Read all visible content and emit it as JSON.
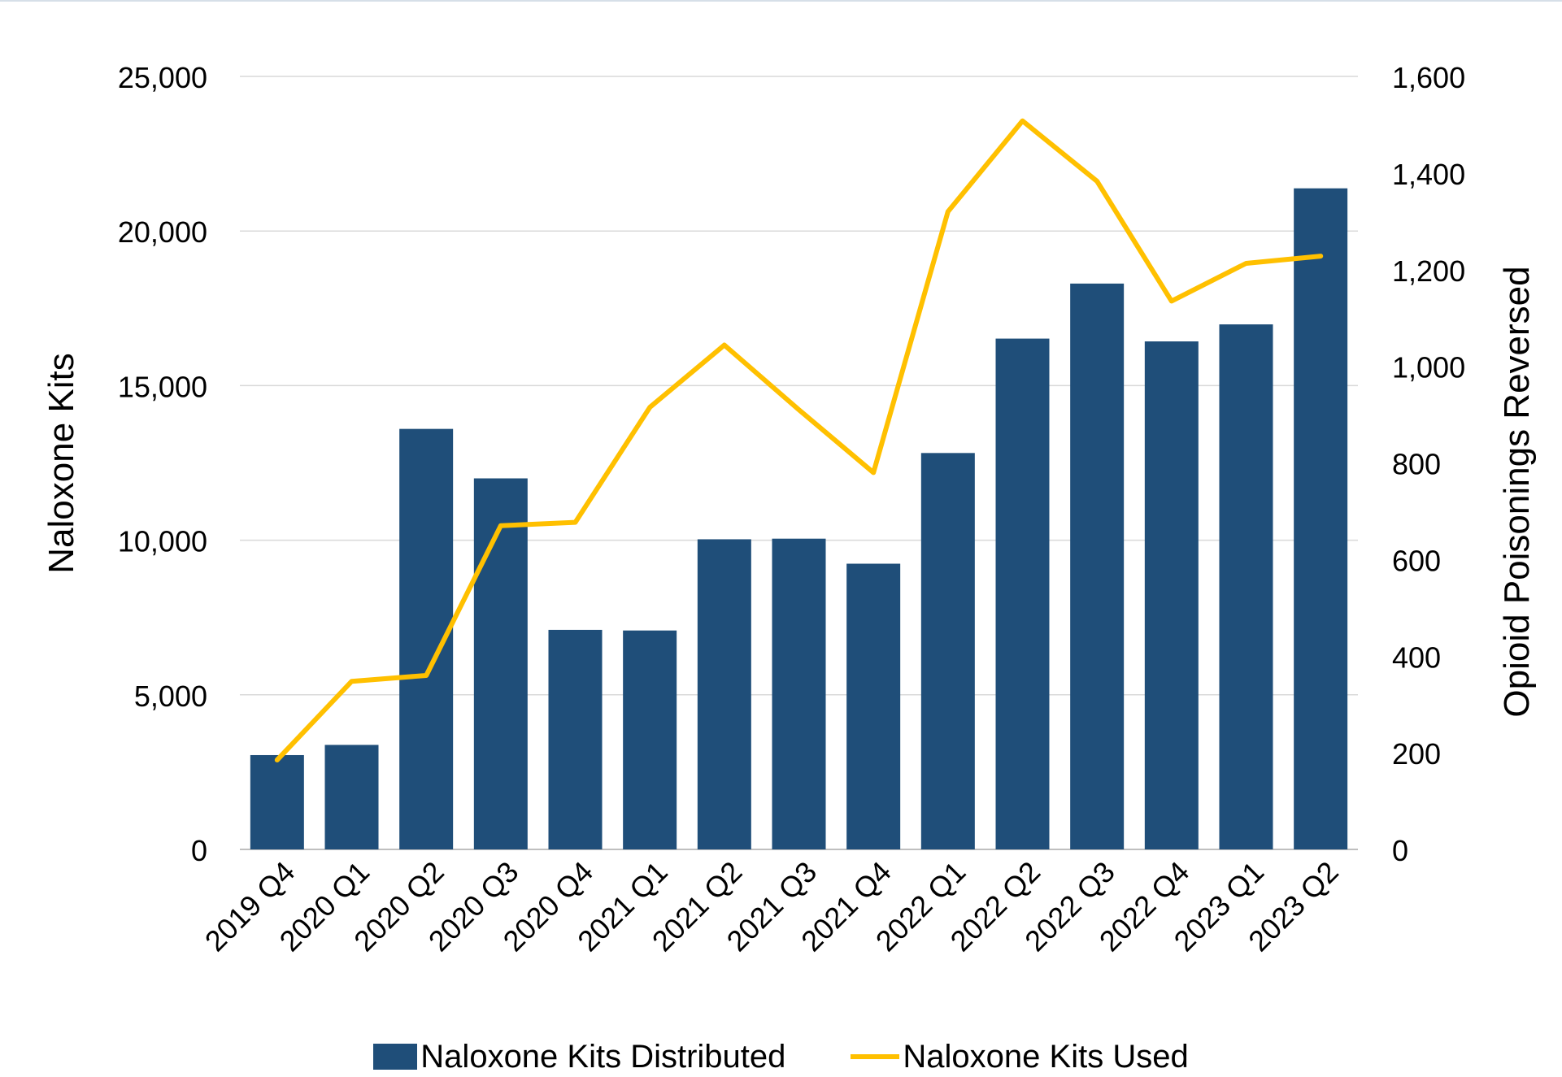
{
  "chart_data": {
    "type": "bar+line",
    "categories": [
      "2019 Q4",
      "2020 Q1",
      "2020 Q2",
      "2020 Q3",
      "2020 Q4",
      "2021 Q1",
      "2021 Q2",
      "2021 Q3",
      "2021 Q4",
      "2022 Q1",
      "2022 Q2",
      "2022 Q3",
      "2022 Q4",
      "2023 Q1",
      "2023 Q2"
    ],
    "series": [
      {
        "name": "Naloxone Kits Distributed",
        "type": "bar",
        "axis": "left",
        "color": "#1f4e79",
        "values": [
          3050,
          3380,
          13600,
          12000,
          7100,
          7080,
          10030,
          10050,
          9240,
          12820,
          16520,
          18300,
          16430,
          16980,
          21380
        ]
      },
      {
        "name": "Naloxone Kits Used",
        "type": "line",
        "axis": "right",
        "color": "#ffc000",
        "values": [
          185,
          348,
          360,
          670,
          677,
          915,
          1044,
          910,
          780,
          1320,
          1508,
          1383,
          1135,
          1213,
          1228
        ]
      }
    ],
    "ylabel": "Naloxone Kits",
    "y2label": "Opioid Poisonings Reversed",
    "ylim": [
      0,
      25000
    ],
    "y2lim": [
      0,
      1600
    ],
    "yticks": [
      "0",
      "5,000",
      "10,000",
      "15,000",
      "20,000",
      "25,000"
    ],
    "y2ticks": [
      "0",
      "200",
      "400",
      "600",
      "800",
      "1,000",
      "1,200",
      "1,400",
      "1,600"
    ],
    "grid": true,
    "legend_position": "bottom"
  }
}
